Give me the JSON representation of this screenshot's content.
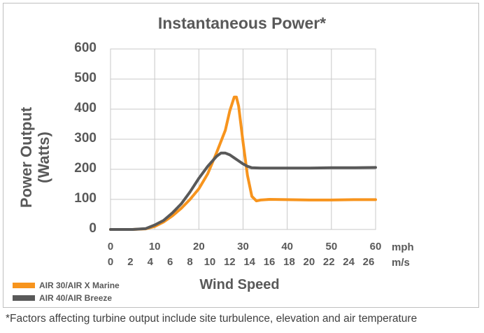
{
  "chart_data": {
    "type": "line",
    "title": "Instantaneous Power*",
    "ylabel": "Power Output (Watts)",
    "ylabel_lines": [
      "Power Output",
      "(Watts)"
    ],
    "xlabel": "Wind Speed",
    "ylim": [
      0,
      600
    ],
    "yticks": [
      "0",
      "100",
      "200",
      "300",
      "400",
      "500",
      "600"
    ],
    "xlim": [
      0,
      60
    ],
    "xticks_mph": [
      "0",
      "10",
      "20",
      "30",
      "40",
      "50",
      "60"
    ],
    "xticks_ms": [
      "0",
      "2",
      "4",
      "6",
      "8",
      "10",
      "12",
      "14",
      "16",
      "18",
      "20",
      "22",
      "24",
      "26"
    ],
    "unit_mph": "mph",
    "unit_ms": "m/s",
    "grid": true,
    "legend_position": "bottom-left",
    "series": [
      {
        "name": "AIR 30/AIR X Marine",
        "color": "#f7941d",
        "x": [
          0,
          5,
          8,
          10,
          12,
          14,
          16,
          18,
          20,
          22,
          24,
          26,
          27,
          28,
          28.5,
          29,
          30,
          31,
          32,
          33,
          34,
          36,
          40,
          45,
          50,
          55,
          60
        ],
        "y": [
          0,
          0,
          2,
          10,
          25,
          45,
          70,
          100,
          135,
          185,
          255,
          330,
          395,
          440,
          440,
          410,
          290,
          180,
          110,
          95,
          98,
          100,
          99,
          98,
          98,
          99,
          99
        ]
      },
      {
        "name": "AIR 40/AIR Breeze",
        "color": "#595959",
        "x": [
          0,
          5,
          8,
          10,
          12,
          14,
          16,
          18,
          20,
          22,
          24,
          25,
          26,
          27,
          28,
          29,
          30,
          31,
          32,
          34,
          40,
          45,
          50,
          55,
          60
        ],
        "y": [
          0,
          0,
          3,
          15,
          30,
          55,
          85,
          125,
          170,
          210,
          243,
          254,
          254,
          248,
          238,
          228,
          218,
          210,
          205,
          204,
          204,
          204,
          205,
          205,
          206
        ]
      }
    ]
  },
  "footnote": "*Factors affecting turbine output include site turbulence, elevation and air temperature"
}
